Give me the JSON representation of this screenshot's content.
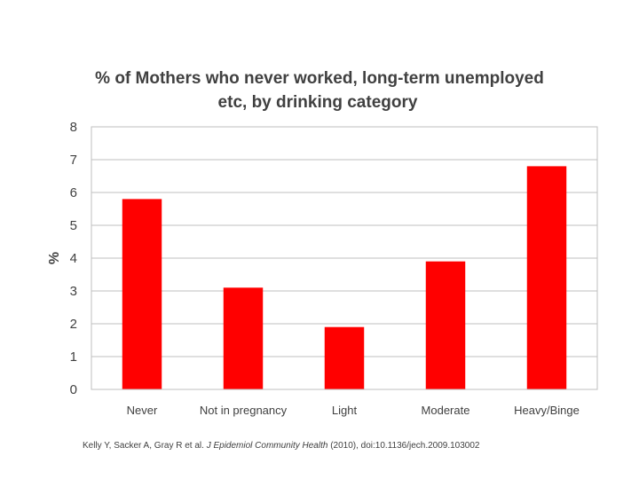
{
  "chart_data": {
    "type": "bar",
    "title_lines": [
      "% of Mothers who never worked, long-term unemployed",
      "etc, by drinking category"
    ],
    "xlabel": "",
    "ylabel": "%",
    "categories": [
      "Never",
      "Not in pregnancy",
      "Light",
      "Moderate",
      "Heavy/Binge"
    ],
    "values": [
      5.8,
      3.1,
      1.9,
      3.9,
      6.8
    ],
    "ylim": [
      0,
      8
    ],
    "yticks": [
      "0",
      "1",
      "2",
      "3",
      "4",
      "5",
      "6",
      "7",
      "8"
    ],
    "grid": true,
    "legend": "none",
    "bar_color": "#ff0000"
  },
  "citation": {
    "authors": "Kelly Y, Sacker A, Gray R et al.",
    "journal": "J Epidemiol Community Health",
    "rest": "(2010), doi:10.1136/jech.2009.103002"
  }
}
